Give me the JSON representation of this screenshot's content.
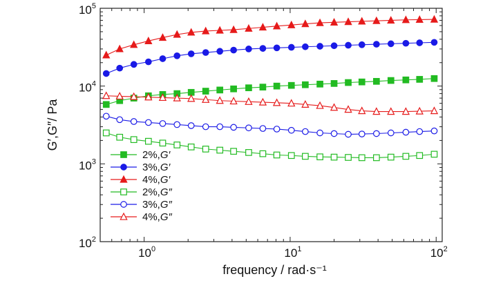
{
  "chart_data": {
    "type": "line",
    "xscale": "log",
    "yscale": "log",
    "xlim": [
      0.5,
      110
    ],
    "ylim": [
      100,
      100000
    ],
    "xlabel": "frequency / rad·s⁻¹",
    "ylabel": "G′,G″/ Pa",
    "x_ticks": [
      {
        "value": 1,
        "base": "10",
        "exp": "0"
      },
      {
        "value": 10,
        "base": "10",
        "exp": "1"
      },
      {
        "value": 100,
        "base": "10",
        "exp": "2"
      }
    ],
    "y_ticks": [
      {
        "value": 100,
        "base": "10",
        "exp": "2"
      },
      {
        "value": 1000,
        "base": "10",
        "exp": "3"
      },
      {
        "value": 10000,
        "base": "10",
        "exp": "4"
      },
      {
        "value": 100000,
        "base": "10",
        "exp": "5"
      }
    ],
    "legend_position": "bottom-left",
    "x": [
      0.55,
      0.68,
      0.85,
      1.07,
      1.34,
      1.68,
      2.1,
      2.64,
      3.3,
      4.1,
      5.2,
      6.5,
      8.1,
      10.2,
      12.7,
      16,
      20,
      25,
      31,
      39,
      49,
      62,
      77,
      97
    ],
    "series": [
      {
        "name": "2%,G′",
        "label": "2%,",
        "symbol": "G′",
        "color": "#22bb22",
        "marker": "square",
        "filled": true,
        "values": [
          5800,
          6500,
          7000,
          7500,
          7800,
          8000,
          8300,
          8600,
          8900,
          9200,
          9500,
          9700,
          10000,
          10200,
          10400,
          10600,
          10800,
          11100,
          11300,
          11500,
          11800,
          12000,
          12200,
          12500
        ]
      },
      {
        "name": "3%,G′",
        "label": "3%,",
        "symbol": "G′",
        "color": "#1a1ae6",
        "marker": "circle",
        "filled": true,
        "values": [
          14500,
          17000,
          19000,
          20500,
          22500,
          24500,
          26000,
          27000,
          28000,
          29000,
          30000,
          30500,
          31000,
          31500,
          32000,
          32500,
          33000,
          33500,
          34000,
          34500,
          35000,
          35500,
          36000,
          36500
        ]
      },
      {
        "name": "4%,G′",
        "label": "4%,",
        "symbol": "G′",
        "color": "#e61a1a",
        "marker": "triangle",
        "filled": true,
        "values": [
          25000,
          30000,
          34000,
          38000,
          42000,
          46000,
          49000,
          51000,
          52000,
          53000,
          55000,
          57000,
          59000,
          61000,
          63000,
          65000,
          66000,
          67000,
          68000,
          69000,
          70000,
          71000,
          71500,
          72000
        ]
      },
      {
        "name": "2%,G″",
        "label": "2%,",
        "symbol": "G″",
        "color": "#22bb22",
        "marker": "square",
        "filled": false,
        "values": [
          2500,
          2200,
          2050,
          1950,
          1850,
          1750,
          1650,
          1550,
          1500,
          1450,
          1400,
          1350,
          1300,
          1280,
          1250,
          1230,
          1220,
          1210,
          1200,
          1200,
          1220,
          1250,
          1280,
          1330
        ]
      },
      {
        "name": "3%,G″",
        "label": "3%,",
        "symbol": "G″",
        "color": "#1a1ae6",
        "marker": "circle",
        "filled": false,
        "values": [
          4100,
          3700,
          3500,
          3400,
          3300,
          3200,
          3100,
          3000,
          3000,
          2950,
          2900,
          2850,
          2800,
          2700,
          2600,
          2500,
          2450,
          2400,
          2420,
          2450,
          2500,
          2550,
          2600,
          2650
        ]
      },
      {
        "name": "4%,G″",
        "label": "4%,",
        "symbol": "G″",
        "color": "#e61a1a",
        "marker": "triangle",
        "filled": false,
        "values": [
          7500,
          7400,
          7300,
          7200,
          7100,
          7000,
          6900,
          6700,
          6500,
          6400,
          6300,
          6200,
          6100,
          6000,
          5800,
          5600,
          5300,
          5000,
          4800,
          4700,
          4700,
          4700,
          4750,
          4800
        ]
      }
    ]
  }
}
